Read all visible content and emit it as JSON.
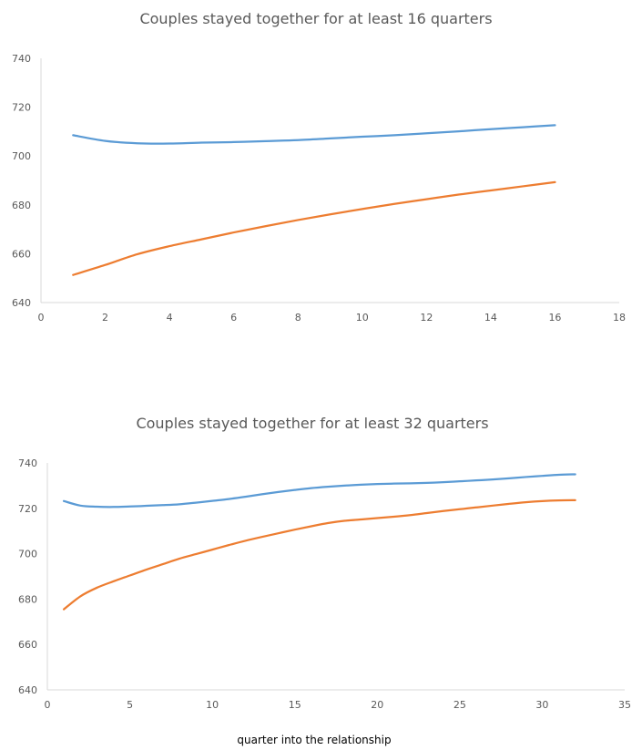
{
  "chart_data": [
    {
      "type": "line",
      "title": "Couples stayed together for at least 16 quarters",
      "xlabel": "",
      "ylabel": "",
      "xlim": [
        0,
        18
      ],
      "ylim": [
        640,
        740
      ],
      "xticks": [
        0,
        2,
        4,
        6,
        8,
        10,
        12,
        14,
        16,
        18
      ],
      "yticks": [
        640,
        660,
        680,
        700,
        720,
        740
      ],
      "grid": false,
      "series": [
        {
          "color": "#5B9BD5",
          "x": [
            1,
            2,
            3,
            4,
            5,
            6,
            7,
            8,
            9,
            10,
            11,
            12,
            13,
            14,
            15,
            16
          ],
          "y": [
            708.5,
            706.2,
            705.2,
            705.1,
            705.5,
            705.7,
            706.1,
            706.5,
            707.2,
            707.9,
            708.5,
            709.3,
            710.1,
            711.0,
            711.8,
            712.6
          ]
        },
        {
          "color": "#ED7D31",
          "x": [
            1,
            2,
            3,
            4,
            5,
            6,
            7,
            8,
            9,
            10,
            11,
            12,
            13,
            14,
            15,
            16
          ],
          "y": [
            651.3,
            655.4,
            659.8,
            663.1,
            665.9,
            668.7,
            671.3,
            673.8,
            676.1,
            678.3,
            680.4,
            682.3,
            684.2,
            685.9,
            687.6,
            689.3
          ]
        }
      ]
    },
    {
      "type": "line",
      "title": "Couples stayed together for at least 32 quarters",
      "xlabel": "quarter into the relationship",
      "ylabel": "",
      "xlim": [
        0,
        35
      ],
      "ylim": [
        640,
        740
      ],
      "xticks": [
        0,
        5,
        10,
        15,
        20,
        25,
        30,
        35
      ],
      "yticks": [
        640,
        660,
        680,
        700,
        720,
        740
      ],
      "grid": false,
      "series": [
        {
          "color": "#5B9BD5",
          "x": [
            1,
            2,
            3,
            4,
            5,
            6,
            7,
            8,
            9,
            10,
            11,
            12,
            13,
            14,
            15,
            16,
            17,
            18,
            19,
            20,
            21,
            22,
            23,
            24,
            25,
            26,
            27,
            28,
            29,
            30,
            31,
            32
          ],
          "y": [
            723.2,
            721.2,
            720.7,
            720.6,
            720.8,
            721.1,
            721.4,
            721.8,
            722.5,
            723.3,
            724.1,
            725.1,
            726.2,
            727.2,
            728.1,
            728.9,
            729.5,
            730.0,
            730.4,
            730.7,
            730.9,
            731.0,
            731.2,
            731.5,
            731.9,
            732.3,
            732.7,
            733.2,
            733.8,
            734.3,
            734.8,
            735.0
          ]
        },
        {
          "color": "#ED7D31",
          "x": [
            1,
            2,
            3,
            4,
            5,
            6,
            7,
            8,
            9,
            10,
            11,
            12,
            13,
            14,
            15,
            16,
            17,
            18,
            19,
            20,
            21,
            22,
            23,
            24,
            25,
            26,
            27,
            28,
            29,
            30,
            31,
            32
          ],
          "y": [
            675.5,
            681.2,
            685.0,
            687.8,
            690.4,
            693.0,
            695.4,
            697.8,
            699.8,
            701.8,
            703.8,
            705.7,
            707.4,
            709.0,
            710.6,
            712.1,
            713.5,
            714.5,
            715.1,
            715.7,
            716.3,
            717.0,
            717.9,
            718.8,
            719.6,
            720.4,
            721.2,
            722.0,
            722.7,
            723.2,
            723.5,
            723.6
          ]
        }
      ]
    }
  ]
}
